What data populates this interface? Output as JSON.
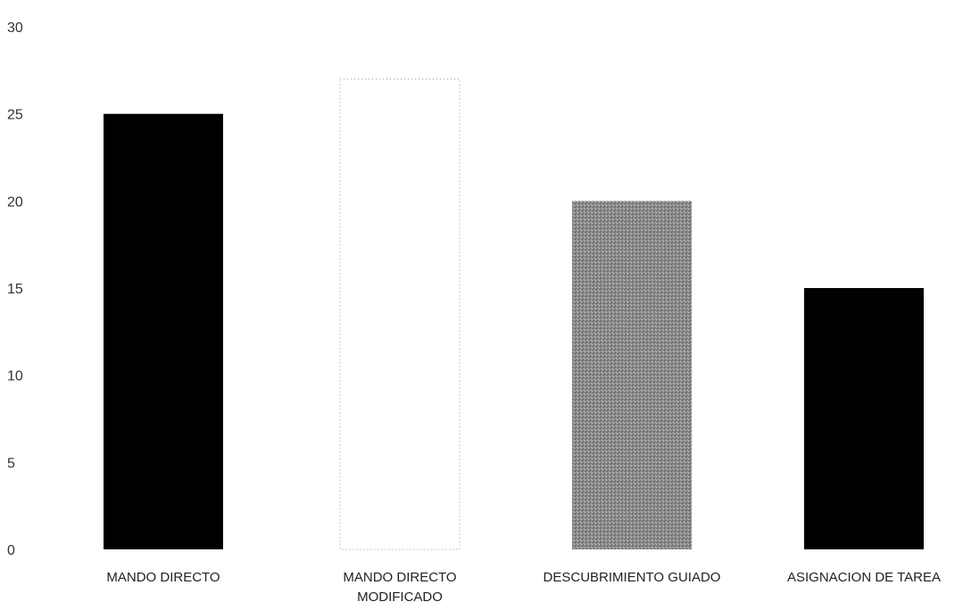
{
  "chart_data": {
    "type": "bar",
    "categories": [
      [
        "MANDO DIRECTO"
      ],
      [
        "MANDO DIRECTO",
        "MODIFICADO"
      ],
      [
        "DESCUBRIMIENTO GUIADO"
      ],
      [
        "ASIGNACION DE TAREA"
      ]
    ],
    "values": [
      25,
      27,
      20,
      15
    ],
    "bar_colors": [
      "#000000",
      "#ffffff",
      "#8a8a8a",
      "#000000"
    ],
    "bar_outline": [
      false,
      true,
      false,
      false
    ],
    "yticks": [
      0,
      5,
      10,
      15,
      20,
      25,
      30
    ],
    "ylim": [
      0,
      30
    ],
    "grid": false,
    "legend": "none"
  }
}
